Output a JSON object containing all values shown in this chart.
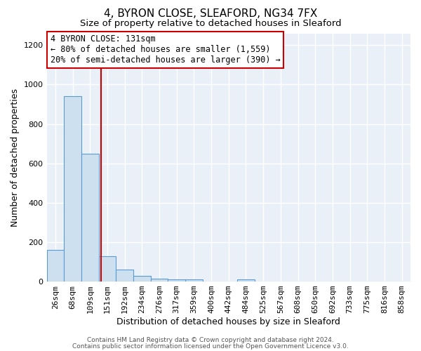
{
  "title1": "4, BYRON CLOSE, SLEAFORD, NG34 7FX",
  "title2": "Size of property relative to detached houses in Sleaford",
  "xlabel": "Distribution of detached houses by size in Sleaford",
  "ylabel": "Number of detached properties",
  "bin_labels": [
    "26sqm",
    "68sqm",
    "109sqm",
    "151sqm",
    "192sqm",
    "234sqm",
    "276sqm",
    "317sqm",
    "359sqm",
    "400sqm",
    "442sqm",
    "484sqm",
    "525sqm",
    "567sqm",
    "608sqm",
    "650sqm",
    "692sqm",
    "733sqm",
    "775sqm",
    "816sqm",
    "858sqm"
  ],
  "bar_heights": [
    160,
    940,
    650,
    130,
    60,
    28,
    15,
    12,
    12,
    0,
    0,
    12,
    0,
    0,
    0,
    0,
    0,
    0,
    0,
    0,
    0
  ],
  "bar_color": "#cce0f0",
  "bar_edge_color": "#5b9bd5",
  "red_line_x": 2.65,
  "annotation_text": "4 BYRON CLOSE: 131sqm\n← 80% of detached houses are smaller (1,559)\n20% of semi-detached houses are larger (390) →",
  "annotation_box_color": "#ffffff",
  "annotation_box_edge_color": "#cc0000",
  "ylim": [
    0,
    1260
  ],
  "yticks": [
    0,
    200,
    400,
    600,
    800,
    1000,
    1200
  ],
  "footer1": "Contains HM Land Registry data © Crown copyright and database right 2024.",
  "footer2": "Contains public sector information licensed under the Open Government Licence v3.0.",
  "bg_color": "#eaf0f8",
  "grid_color": "#ffffff",
  "title1_fontsize": 11,
  "title2_fontsize": 9.5,
  "xlabel_fontsize": 9,
  "ylabel_fontsize": 9,
  "footer_fontsize": 6.5,
  "tick_fontsize": 8,
  "annot_fontsize": 8.5
}
